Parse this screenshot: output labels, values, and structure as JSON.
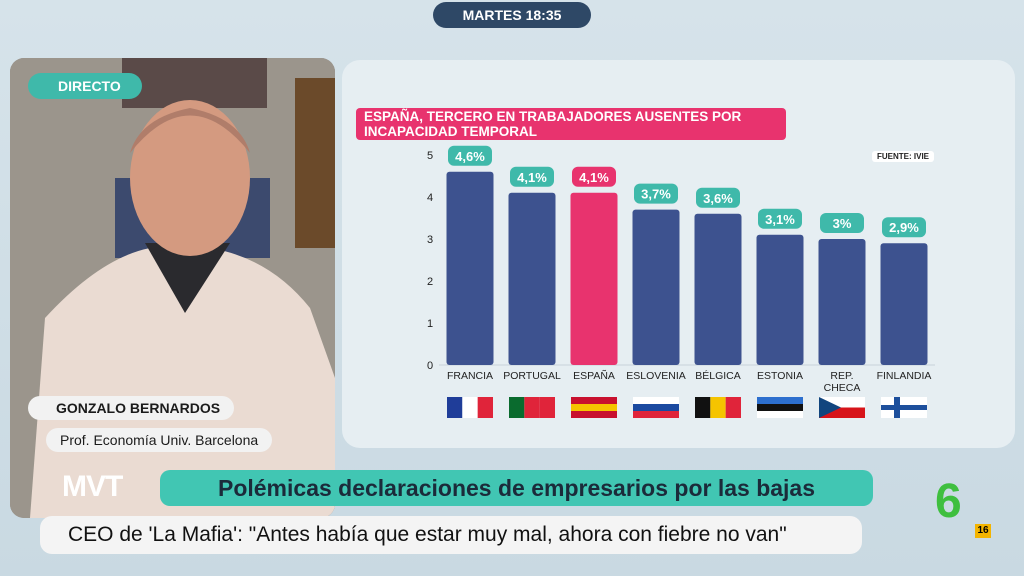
{
  "top_bar": {
    "time": "MARTES 18:35"
  },
  "video": {
    "badge": "DIRECTO",
    "name": "GONZALO BERNARDOS",
    "role": "Prof. Economía Univ. Barcelona"
  },
  "ticker": {
    "headline": "Polémicas declaraciones de empresarios por las bajas",
    "quote": "CEO de 'La Mafia': \"Antes había que estar muy mal, ahora con fiebre no van\""
  },
  "logos": {
    "channel_left": "MVT",
    "channel_right": "6",
    "rating": "16"
  },
  "chart_data": {
    "type": "bar",
    "title": "ESPAÑA, TERCERO EN TRABAJADORES AUSENTES POR INCAPACIDAD TEMPORAL",
    "source": "FUENTE: IVIE",
    "categories": [
      "FRANCIA",
      "PORTUGAL",
      "ESPAÑA",
      "ESLOVENIA",
      "BÉLGICA",
      "ESTONIA",
      "REP. CHECA",
      "FINLANDIA"
    ],
    "values": [
      4.6,
      4.1,
      4.1,
      3.7,
      3.6,
      3.1,
      3,
      2.9
    ],
    "value_labels": [
      "4,6%",
      "4,1%",
      "4,1%",
      "3,7%",
      "3,6%",
      "3,1%",
      "3%",
      "2,9%"
    ],
    "colors": [
      "#3d528f",
      "#3d528f",
      "#e8336e",
      "#3d528f",
      "#3d528f",
      "#3d528f",
      "#3d528f",
      "#3d528f"
    ],
    "label_colors": [
      "#3fb9aa",
      "#3fb9aa",
      "#e8336e",
      "#3fb9aa",
      "#3fb9aa",
      "#3fb9aa",
      "#3fb9aa",
      "#3fb9aa"
    ],
    "ylim": [
      0,
      5
    ],
    "yticks": [
      0,
      1,
      2,
      3,
      4,
      5
    ],
    "grid": false
  }
}
